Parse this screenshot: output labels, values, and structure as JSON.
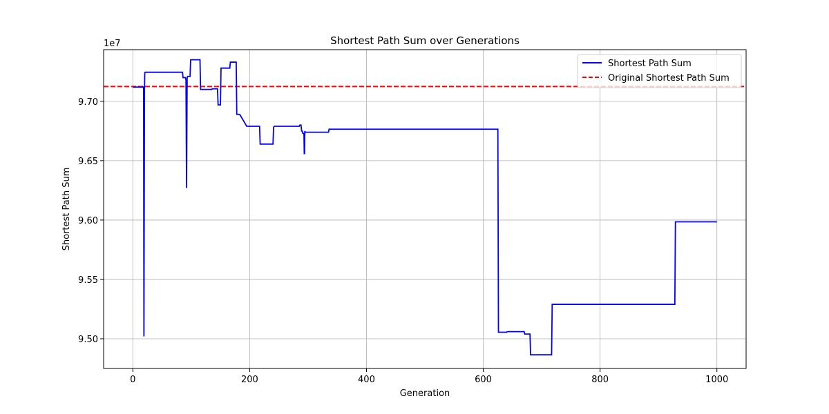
{
  "chart_data": {
    "type": "line",
    "title": "Shortest Path Sum over Generations",
    "xlabel": "Generation",
    "ylabel": "Shortest Path Sum",
    "y_offset_label": "1e7",
    "y_scale_factor": 10000000,
    "xlim": [
      -50,
      1050
    ],
    "ylim": [
      94.75,
      97.435
    ],
    "xticks": [
      0,
      200,
      400,
      600,
      800,
      1000
    ],
    "xtick_labels": [
      "0",
      "200",
      "400",
      "600",
      "800",
      "1000"
    ],
    "yticks": [
      95.0,
      95.5,
      96.0,
      96.5,
      97.0
    ],
    "ytick_labels": [
      "9.50",
      "9.55",
      "9.60",
      "9.65",
      "9.70"
    ],
    "grid": true,
    "legend_position": "upper right",
    "series": [
      {
        "name": "Shortest Path Sum",
        "color": "#0000ff",
        "style": "solid",
        "x": [
          0,
          18,
          18.5,
          19,
          20,
          20.5,
          21,
          85,
          86,
          90,
          91,
          92,
          93,
          94,
          98,
          99,
          104,
          105,
          115,
          116,
          135,
          136,
          145,
          146,
          150,
          151,
          166,
          167,
          177,
          178,
          182,
          183,
          195,
          196,
          217,
          218,
          240,
          241,
          242,
          243,
          285,
          286,
          288,
          289,
          290,
          291,
          293,
          293.5,
          294,
          294.5,
          295,
          296,
          297,
          335,
          336,
          375,
          376,
          625,
          626,
          640,
          641,
          670,
          671,
          680,
          681,
          710,
          711,
          717,
          718,
          928,
          929,
          1000
        ],
        "y": [
          97.12,
          97.12,
          97.1,
          95.02,
          97.1,
          97.24,
          97.245,
          97.245,
          97.2,
          97.2,
          97.18,
          96.27,
          97.2,
          97.21,
          97.21,
          97.35,
          97.35,
          97.35,
          97.35,
          97.1,
          97.1,
          97.105,
          97.105,
          96.97,
          96.97,
          97.28,
          97.28,
          97.33,
          97.33,
          96.89,
          96.89,
          96.89,
          96.79,
          96.79,
          96.79,
          96.64,
          96.64,
          96.78,
          96.79,
          96.79,
          96.79,
          96.8,
          96.8,
          96.75,
          96.75,
          96.73,
          96.73,
          96.56,
          96.56,
          96.75,
          96.74,
          96.74,
          96.74,
          96.74,
          96.765,
          96.765,
          96.765,
          96.765,
          95.055,
          95.055,
          95.06,
          95.06,
          95.04,
          95.04,
          94.865,
          94.865,
          94.865,
          94.865,
          95.29,
          95.29,
          95.985,
          95.985
        ]
      }
    ],
    "reference_lines": [
      {
        "name": "Original Shortest Path Sum",
        "color": "#ff0000",
        "style": "dashed",
        "y": 97.125
      }
    ]
  }
}
